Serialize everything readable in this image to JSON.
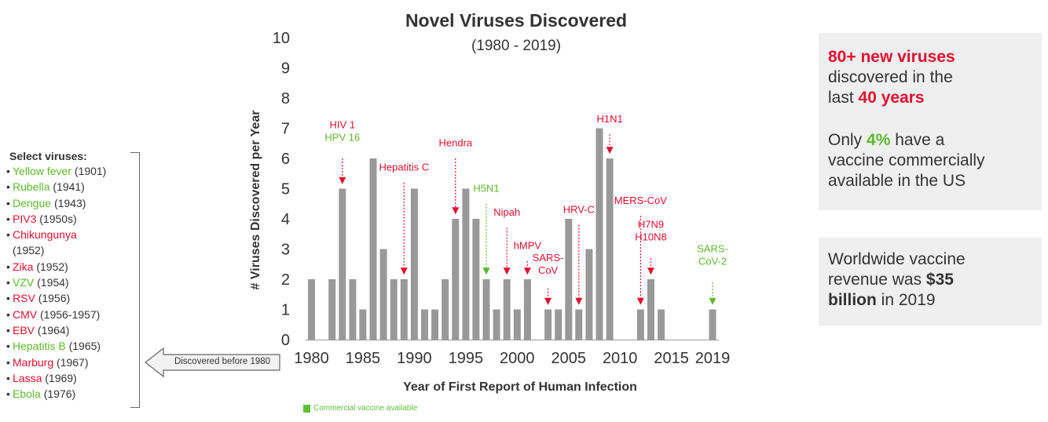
{
  "sidebar": {
    "heading": "Select viruses:",
    "items": [
      {
        "name": "Yellow fever",
        "year": "(1901)",
        "color": "green"
      },
      {
        "name": "Rubella",
        "year": "(1941)",
        "color": "green"
      },
      {
        "name": "Dengue",
        "year": "(1943)",
        "color": "green"
      },
      {
        "name": "PIV3",
        "year": "(1950s)",
        "color": "red"
      },
      {
        "name": "Chikungunya",
        "year": "(1952)",
        "color": "red",
        "wrap": true
      },
      {
        "name": "Zika",
        "year": "(1952)",
        "color": "red"
      },
      {
        "name": "VZV",
        "year": "(1954)",
        "color": "green"
      },
      {
        "name": "RSV",
        "year": "(1956)",
        "color": "red"
      },
      {
        "name": "CMV",
        "year": "(1956-1957)",
        "color": "red"
      },
      {
        "name": "EBV",
        "year": "(1964)",
        "color": "red"
      },
      {
        "name": "Hepatitis B",
        "year": "(1965)",
        "color": "green"
      },
      {
        "name": "Marburg",
        "year": "(1967)",
        "color": "red"
      },
      {
        "name": "Lassa",
        "year": "(1969)",
        "color": "red"
      },
      {
        "name": "Ebola",
        "year": "(1976)",
        "color": "green"
      }
    ],
    "before_label": "Discovered before 1980"
  },
  "chart_data": {
    "type": "bar",
    "title": "Novel Viruses Discovered",
    "subtitle": "(1980 - 2019)",
    "xlabel": "Year of First Report of Human Infection",
    "ylabel": "# Viruses Discovered per Year",
    "ylim": [
      0,
      10
    ],
    "yticks": [
      "0",
      "1",
      "2",
      "3",
      "4",
      "5",
      "6",
      "7",
      "8",
      "9",
      "10"
    ],
    "xticks": [
      "1980",
      "1985",
      "1990",
      "1995",
      "2000",
      "2005",
      "2010",
      "2015",
      "2019"
    ],
    "x": [
      1980,
      1981,
      1982,
      1983,
      1984,
      1985,
      1986,
      1987,
      1988,
      1989,
      1990,
      1991,
      1992,
      1993,
      1994,
      1995,
      1996,
      1997,
      1998,
      1999,
      2000,
      2001,
      2002,
      2003,
      2004,
      2005,
      2006,
      2007,
      2008,
      2009,
      2010,
      2011,
      2012,
      2013,
      2014,
      2015,
      2016,
      2017,
      2018,
      2019
    ],
    "values": [
      2,
      0,
      2,
      5,
      2,
      1,
      6,
      3,
      2,
      2,
      5,
      1,
      1,
      2,
      4,
      5,
      4,
      2,
      1,
      2,
      1,
      2,
      0,
      1,
      1,
      4,
      1,
      3,
      7,
      6,
      0,
      0,
      1,
      2,
      1,
      0,
      0,
      0,
      0,
      1
    ],
    "bar_color": "#999999",
    "annotations": [
      {
        "lines": [
          "HIV 1"
        ],
        "extra": [
          "HPV 16"
        ],
        "extra_color": "green",
        "color": "red",
        "year": 1983,
        "text_y": 7.0,
        "arrow_top": 6.0,
        "arrow_bottom": 5.15
      },
      {
        "lines": [
          "Hendra"
        ],
        "color": "red",
        "year": 1994,
        "text_y": 6.4,
        "arrow_top": 6.0,
        "arrow_bottom": 4.15
      },
      {
        "lines": [
          "Hepatitis C"
        ],
        "color": "red",
        "year": 1989,
        "text_y": 5.6,
        "arrow_top": 5.2,
        "arrow_bottom": 2.15
      },
      {
        "lines": [
          "H5N1"
        ],
        "color": "green",
        "year": 1997,
        "text_y": 4.9,
        "arrow_top": 4.5,
        "arrow_bottom": 2.15
      },
      {
        "lines": [
          "Nipah"
        ],
        "color": "red",
        "year": 1999,
        "text_y": 4.1,
        "arrow_top": 3.7,
        "arrow_bottom": 2.15
      },
      {
        "lines": [
          "hMPV"
        ],
        "color": "red",
        "year": 2001,
        "text_y": 3.0,
        "arrow_top": 2.6,
        "arrow_bottom": 2.15
      },
      {
        "lines": [
          "SARS-",
          "CoV"
        ],
        "color": "red",
        "year": 2003,
        "text_y": 2.6,
        "arrow_top": 1.7,
        "arrow_bottom": 1.15
      },
      {
        "lines": [
          "HRV-C"
        ],
        "color": "red",
        "year": 2006,
        "text_y": 4.2,
        "arrow_top": 3.8,
        "arrow_bottom": 1.15
      },
      {
        "lines": [
          "H1N1"
        ],
        "color": "red",
        "year": 2009,
        "text_y": 7.2,
        "arrow_top": 6.8,
        "arrow_bottom": 6.15
      },
      {
        "lines": [
          "MERS-CoV"
        ],
        "color": "red",
        "year": 2012,
        "text_y": 4.5,
        "arrow_top": 4.1,
        "arrow_bottom": 1.15
      },
      {
        "lines": [
          "H7N9",
          "H10N8"
        ],
        "color": "red",
        "year": 2013,
        "text_y": 3.7,
        "arrow_top": 2.7,
        "arrow_bottom": 2.15
      },
      {
        "lines": [
          "SARS-",
          "CoV-2"
        ],
        "color": "green",
        "year": 2019,
        "text_y": 2.9,
        "arrow_top": 1.9,
        "arrow_bottom": 1.15
      }
    ],
    "legend": {
      "label": "Commercial vaccine available",
      "color": "#5cc235"
    }
  },
  "colors": {
    "red": "#e3102f",
    "green": "#5cb82d",
    "dark": "#333333",
    "box_bg": "#efefef"
  },
  "panel1": {
    "line1_prefix": "80+ new viruses",
    "line2": "discovered in the",
    "line3_prefix": "last",
    "line3_bold": "40 years",
    "p2_a": "Only",
    "p2_pct": "4%",
    "p2_b": "have a",
    "p2_line2": "vaccine commercially",
    "p2_line3": "available in the US"
  },
  "panel2": {
    "line1": "Worldwide vaccine",
    "line2_prefix": "revenue was",
    "line2_bold": "$35",
    "line3_bold": "billion",
    "line3_suffix": "in 2019"
  }
}
